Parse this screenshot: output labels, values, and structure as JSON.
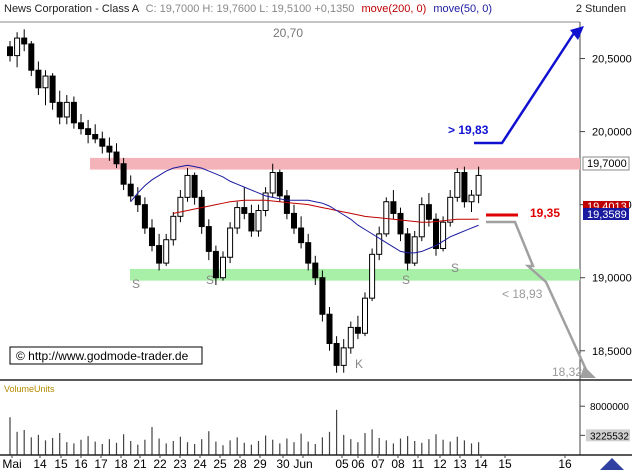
{
  "header": {
    "title": "News Corporation - Class A",
    "quote": "C: 19,7000  H: 19,7600  L: 19,5100  +0,1350",
    "ma200": "move(200, 0)",
    "ma50": "move(50, 0)",
    "interval": "2 Stunden"
  },
  "watermark": "© http://www.godmode-trader.de",
  "volume_title": "VolumeUnits",
  "colors": {
    "up": "#ffffff",
    "down": "#000000",
    "ma200": "#c00000",
    "ma50": "#1a1aa0",
    "resistance": "#f4b3b8",
    "support": "#a8f0a8",
    "target_up": "#1010d0",
    "target_down": "#a0a0a0",
    "stop": "#e00000"
  },
  "chart_data": {
    "type": "candlestick",
    "ylim": [
      18.3,
      20.75
    ],
    "price_ticks": [
      "20,5000",
      "20,0000",
      "19,5000",
      "19,0000",
      "18,5000"
    ],
    "price_tick_values": [
      20.5,
      20.0,
      19.5,
      19.0,
      18.5
    ],
    "date_labels": [
      "Mai",
      "14",
      "15",
      "16",
      "17",
      "18",
      "21",
      "22",
      "23",
      "24",
      "25",
      "28",
      "29",
      "30",
      "Jun",
      "05",
      "06",
      "07",
      "08",
      "11",
      "12",
      "13",
      "14",
      "15",
      "16"
    ],
    "last_price_label": "19,7000",
    "ma50_label": "19,3589",
    "ma200_label": "19,4013",
    "resistance_zone": [
      19.74,
      19.82
    ],
    "support_zone": [
      18.98,
      19.06
    ],
    "levels": [
      {
        "label": "20,70",
        "value": 20.7
      },
      {
        "label": "> 19,83",
        "value": 19.83
      },
      {
        "label": "19,35",
        "value": 19.35
      },
      {
        "label": "< 18,93",
        "value": 18.93
      },
      {
        "label": "18,32",
        "value": 18.32
      }
    ],
    "pattern_labels": [
      "S",
      "S",
      "K",
      "S",
      "S"
    ],
    "volume_ticks": [
      "8000000",
      "3225532"
    ],
    "volume_tick_values": [
      8000000,
      3225532
    ],
    "volume_max": 10000000,
    "candles": [
      [
        20.58,
        20.62,
        20.48,
        20.52
      ],
      [
        20.52,
        20.68,
        20.44,
        20.64
      ],
      [
        20.64,
        20.7,
        20.55,
        20.6
      ],
      [
        20.6,
        20.62,
        20.38,
        20.42
      ],
      [
        20.42,
        20.48,
        20.25,
        20.3
      ],
      [
        20.3,
        20.42,
        20.18,
        20.38
      ],
      [
        20.38,
        20.4,
        20.15,
        20.2
      ],
      [
        20.2,
        20.28,
        20.05,
        20.1
      ],
      [
        20.1,
        20.25,
        20.05,
        20.2
      ],
      [
        20.2,
        20.24,
        20.02,
        20.06
      ],
      [
        20.06,
        20.12,
        19.98,
        20.02
      ],
      [
        20.02,
        20.08,
        19.92,
        19.98
      ],
      [
        19.98,
        20.05,
        19.92,
        19.95
      ],
      [
        19.95,
        20.0,
        19.85,
        19.9
      ],
      [
        19.9,
        19.96,
        19.8,
        19.86
      ],
      [
        19.86,
        19.92,
        19.75,
        19.78
      ],
      [
        19.78,
        19.82,
        19.6,
        19.64
      ],
      [
        19.64,
        19.7,
        19.52,
        19.56
      ],
      [
        19.56,
        19.62,
        19.45,
        19.5
      ],
      [
        19.5,
        19.55,
        19.3,
        19.34
      ],
      [
        19.34,
        19.4,
        19.18,
        19.22
      ],
      [
        19.22,
        19.3,
        19.05,
        19.1
      ],
      [
        19.1,
        19.3,
        19.08,
        19.26
      ],
      [
        19.26,
        19.45,
        19.22,
        19.42
      ],
      [
        19.42,
        19.6,
        19.38,
        19.55
      ],
      [
        19.55,
        19.75,
        19.52,
        19.7
      ],
      [
        19.7,
        19.72,
        19.5,
        19.55
      ],
      [
        19.55,
        19.6,
        19.3,
        19.35
      ],
      [
        19.35,
        19.4,
        19.12,
        19.18
      ],
      [
        19.18,
        19.22,
        18.95,
        19.0
      ],
      [
        19.0,
        19.18,
        18.98,
        19.14
      ],
      [
        19.14,
        19.38,
        19.1,
        19.34
      ],
      [
        19.34,
        19.52,
        19.3,
        19.48
      ],
      [
        19.48,
        19.62,
        19.4,
        19.44
      ],
      [
        19.44,
        19.5,
        19.28,
        19.32
      ],
      [
        19.32,
        19.5,
        19.28,
        19.46
      ],
      [
        19.46,
        19.62,
        19.42,
        19.58
      ],
      [
        19.58,
        19.78,
        19.55,
        19.72
      ],
      [
        19.72,
        19.74,
        19.52,
        19.56
      ],
      [
        19.56,
        19.6,
        19.4,
        19.44
      ],
      [
        19.44,
        19.5,
        19.3,
        19.34
      ],
      [
        19.34,
        19.42,
        19.2,
        19.24
      ],
      [
        19.24,
        19.3,
        19.05,
        19.1
      ],
      [
        19.1,
        19.15,
        18.95,
        19.0
      ],
      [
        19.0,
        19.05,
        18.7,
        18.75
      ],
      [
        18.75,
        18.8,
        18.5,
        18.55
      ],
      [
        18.55,
        18.6,
        18.35,
        18.4
      ],
      [
        18.4,
        18.58,
        18.35,
        18.52
      ],
      [
        18.52,
        18.7,
        18.48,
        18.66
      ],
      [
        18.66,
        18.74,
        18.58,
        18.62
      ],
      [
        18.62,
        18.9,
        18.6,
        18.86
      ],
      [
        18.86,
        19.2,
        18.84,
        19.16
      ],
      [
        19.16,
        19.35,
        19.12,
        19.3
      ],
      [
        19.3,
        19.55,
        19.28,
        19.52
      ],
      [
        19.52,
        19.6,
        19.4,
        19.44
      ],
      [
        19.44,
        19.48,
        19.25,
        19.3
      ],
      [
        19.3,
        19.34,
        19.05,
        19.1
      ],
      [
        19.1,
        19.32,
        19.08,
        19.28
      ],
      [
        19.28,
        19.55,
        19.25,
        19.5
      ],
      [
        19.5,
        19.58,
        19.35,
        19.4
      ],
      [
        19.4,
        19.44,
        19.15,
        19.2
      ],
      [
        19.2,
        19.42,
        19.18,
        19.38
      ],
      [
        19.38,
        19.6,
        19.35,
        19.55
      ],
      [
        19.55,
        19.75,
        19.52,
        19.72
      ],
      [
        19.72,
        19.76,
        19.48,
        19.52
      ],
      [
        19.52,
        19.6,
        19.45,
        19.565
      ],
      [
        19.565,
        19.76,
        19.51,
        19.7
      ]
    ],
    "volume": [
      6200000,
      3800000,
      4100000,
      2900000,
      3300000,
      2400000,
      2800000,
      3600000,
      2100000,
      1900000,
      2500000,
      3100000,
      2200000,
      1800000,
      2600000,
      2000000,
      3400000,
      2300000,
      1700000,
      2500000,
      4600000,
      2700000,
      1900000,
      2300000,
      3000000,
      2100000,
      1800000,
      2600000,
      3900000,
      2200000,
      1600000,
      2400000,
      2900000,
      2000000,
      1700000,
      2300000,
      3200000,
      2500000,
      1900000,
      2700000,
      2100000,
      3500000,
      2200000,
      1800000,
      2900000,
      3800000,
      7400000,
      3300000,
      2600000,
      2100000,
      3600000,
      4200000,
      2800000,
      2400000,
      1900000,
      2700000,
      3100000,
      2300000,
      2000000,
      2600000,
      3400000,
      2500000,
      2200000,
      3000000,
      2400000,
      1900000,
      2100000
    ],
    "ma50": [
      19.52,
      19.58,
      19.63,
      19.67,
      19.7,
      19.73,
      19.75,
      19.76,
      19.77,
      19.76,
      19.75,
      19.73,
      19.71,
      19.69,
      19.66,
      19.64,
      19.62,
      19.6,
      19.58,
      19.56,
      19.55,
      19.54,
      19.53,
      19.53,
      19.53,
      19.53,
      19.52,
      19.51,
      19.49,
      19.46,
      19.43,
      19.4,
      19.36,
      19.33,
      19.3,
      19.27,
      19.24,
      19.21,
      19.18,
      19.17,
      19.17,
      19.18,
      19.2,
      19.22,
      19.25,
      19.28,
      19.3,
      19.32,
      19.34,
      19.3589
    ],
    "ma200": [
      19.44,
      19.45,
      19.46,
      19.47,
      19.48,
      19.49,
      19.5,
      19.51,
      19.52,
      19.525,
      19.53,
      19.53,
      19.53,
      19.53,
      19.525,
      19.52,
      19.515,
      19.51,
      19.505,
      19.5,
      19.49,
      19.48,
      19.47,
      19.46,
      19.45,
      19.44,
      19.43,
      19.42,
      19.415,
      19.41,
      19.405,
      19.4,
      19.395,
      19.39,
      19.385,
      19.38,
      19.38,
      19.385,
      19.39,
      19.395,
      19.4,
      19.4,
      19.4,
      19.4013
    ]
  }
}
